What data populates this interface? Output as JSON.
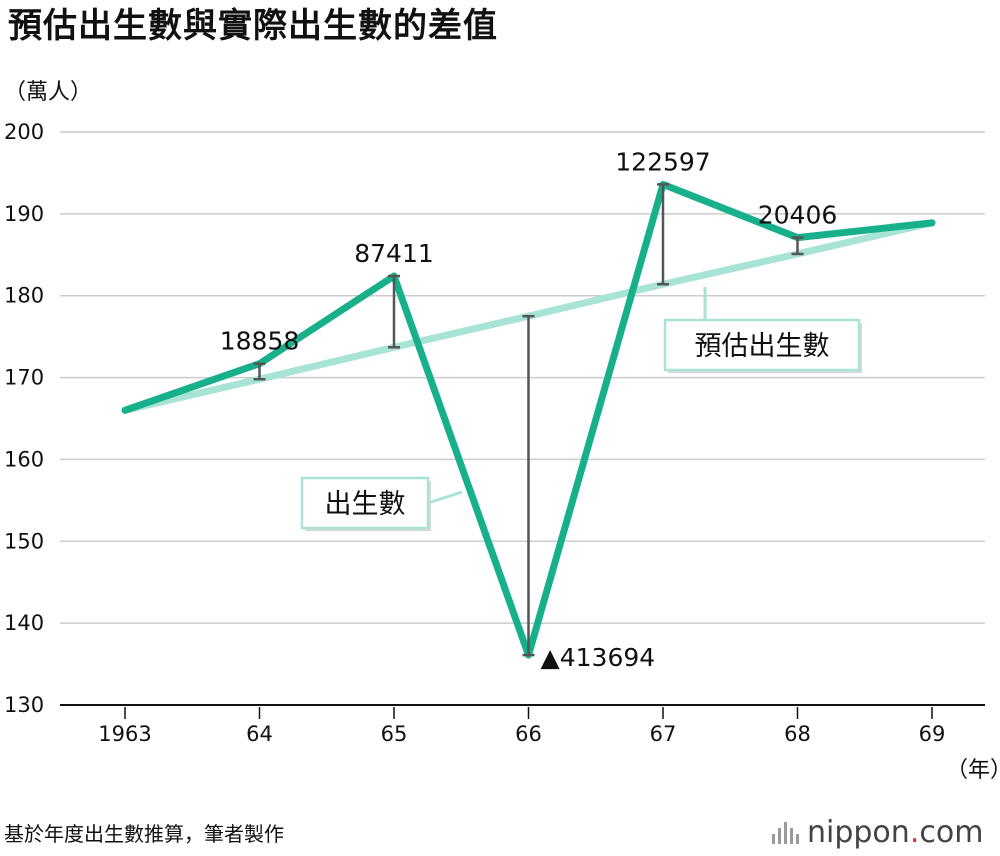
{
  "title": "預估出生數與實際出生數的差值",
  "unit_y": "（萬人）",
  "unit_x": "（年）",
  "source": "基於年度出生數推算，筆者製作",
  "logo": {
    "name": "nippon",
    "dot": ".",
    "tld": "com"
  },
  "colors": {
    "births": "#17b08b",
    "estimate": "#a8e4d6",
    "diff": "#555555",
    "grid": "#cccccc"
  },
  "chart_data": {
    "type": "line",
    "categories": [
      "1963",
      "64",
      "65",
      "66",
      "67",
      "68",
      "69"
    ],
    "ylim": [
      130,
      200
    ],
    "yticks": [
      130,
      140,
      150,
      160,
      170,
      180,
      190,
      200
    ],
    "grid": "horizontal",
    "series": [
      {
        "name": "出生數",
        "key": "births",
        "values": [
          166.0,
          171.7,
          182.4,
          136.1,
          193.6,
          187.1,
          188.9
        ]
      },
      {
        "name": "預估出生數",
        "key": "estimate",
        "values": [
          166.0,
          169.8,
          173.7,
          177.5,
          181.4,
          185.1,
          188.9
        ]
      }
    ],
    "differences": [
      {
        "index": 1,
        "label": "18858"
      },
      {
        "index": 2,
        "label": "87411"
      },
      {
        "index": 3,
        "label": "▲413694"
      },
      {
        "index": 4,
        "label": "122597"
      },
      {
        "index": 5,
        "label": "20406"
      }
    ],
    "callouts": {
      "births": "出生數",
      "estimate": "預估出生數"
    }
  }
}
